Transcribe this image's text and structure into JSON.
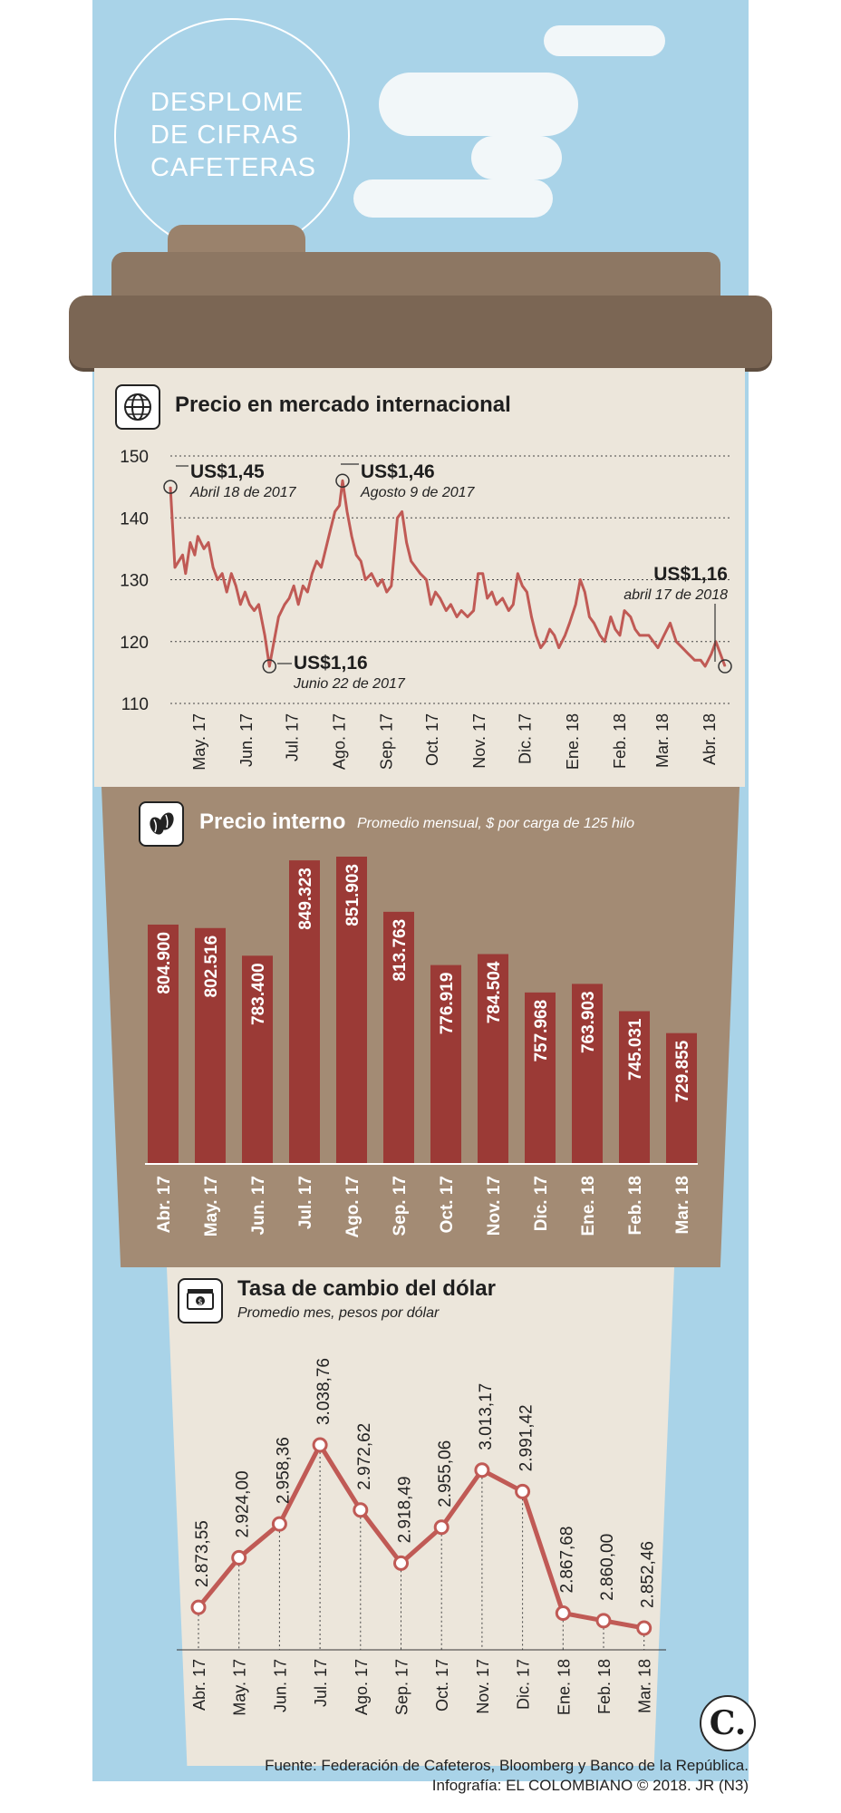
{
  "header": {
    "title_lines": [
      "DESPLOME",
      "DE CIFRAS",
      "CAFETERAS"
    ]
  },
  "chart_data": [
    {
      "type": "line",
      "title": "Precio en mercado internacional",
      "ylim": [
        110,
        150
      ],
      "y_ticks": [
        150,
        140,
        130,
        120,
        110
      ],
      "x_tick_labels": [
        "May. 17",
        "Jun. 17",
        "Jul. 17",
        "Ago. 17",
        "Sep. 17",
        "Oct. 17",
        "Nov. 17",
        "Dic. 17",
        "Ene. 18",
        "Feb. 18",
        "Mar. 18",
        "Abr. 18"
      ],
      "x_range": [
        "2017-04-18",
        "2018-04-17"
      ],
      "color": "#c05a55",
      "grid": "dotted horizontal",
      "points": [
        [
          "2017-04-18",
          145
        ],
        [
          "2017-04-21",
          132
        ],
        [
          "2017-04-26",
          134
        ],
        [
          "2017-04-28",
          131
        ],
        [
          "2017-05-01",
          136
        ],
        [
          "2017-05-04",
          134
        ],
        [
          "2017-05-06",
          137
        ],
        [
          "2017-05-10",
          135
        ],
        [
          "2017-05-13",
          136
        ],
        [
          "2017-05-16",
          132
        ],
        [
          "2017-05-19",
          130
        ],
        [
          "2017-05-22",
          131
        ],
        [
          "2017-05-25",
          128
        ],
        [
          "2017-05-28",
          131
        ],
        [
          "2017-05-31",
          129
        ],
        [
          "2017-06-03",
          126
        ],
        [
          "2017-06-06",
          128
        ],
        [
          "2017-06-09",
          126
        ],
        [
          "2017-06-12",
          125
        ],
        [
          "2017-06-15",
          126
        ],
        [
          "2017-06-19",
          121
        ],
        [
          "2017-06-22",
          116
        ],
        [
          "2017-06-25",
          120
        ],
        [
          "2017-06-28",
          124
        ],
        [
          "2017-07-02",
          126
        ],
        [
          "2017-07-05",
          127
        ],
        [
          "2017-07-08",
          129
        ],
        [
          "2017-07-11",
          126
        ],
        [
          "2017-07-14",
          129
        ],
        [
          "2017-07-17",
          128
        ],
        [
          "2017-07-20",
          131
        ],
        [
          "2017-07-23",
          133
        ],
        [
          "2017-07-26",
          132
        ],
        [
          "2017-07-29",
          135
        ],
        [
          "2017-08-01",
          138
        ],
        [
          "2017-08-04",
          141
        ],
        [
          "2017-08-07",
          142
        ],
        [
          "2017-08-09",
          146
        ],
        [
          "2017-08-12",
          141
        ],
        [
          "2017-08-15",
          137
        ],
        [
          "2017-08-18",
          134
        ],
        [
          "2017-08-21",
          133
        ],
        [
          "2017-08-24",
          130
        ],
        [
          "2017-08-28",
          131
        ],
        [
          "2017-09-01",
          129
        ],
        [
          "2017-09-04",
          130
        ],
        [
          "2017-09-07",
          128
        ],
        [
          "2017-09-10",
          129
        ],
        [
          "2017-09-14",
          140
        ],
        [
          "2017-09-17",
          141
        ],
        [
          "2017-09-20",
          136
        ],
        [
          "2017-09-23",
          133
        ],
        [
          "2017-09-26",
          132
        ],
        [
          "2017-09-29",
          131
        ],
        [
          "2017-10-03",
          130
        ],
        [
          "2017-10-06",
          126
        ],
        [
          "2017-10-09",
          128
        ],
        [
          "2017-10-12",
          127
        ],
        [
          "2017-10-16",
          125
        ],
        [
          "2017-10-19",
          126
        ],
        [
          "2017-10-23",
          124
        ],
        [
          "2017-10-26",
          125
        ],
        [
          "2017-10-30",
          124
        ],
        [
          "2017-11-03",
          125
        ],
        [
          "2017-11-06",
          131
        ],
        [
          "2017-11-09",
          131
        ],
        [
          "2017-11-12",
          127
        ],
        [
          "2017-11-15",
          128
        ],
        [
          "2017-11-18",
          126
        ],
        [
          "2017-11-22",
          127
        ],
        [
          "2017-11-26",
          125
        ],
        [
          "2017-11-29",
          126
        ],
        [
          "2017-12-02",
          131
        ],
        [
          "2017-12-05",
          129
        ],
        [
          "2017-12-08",
          128
        ],
        [
          "2017-12-11",
          124
        ],
        [
          "2017-12-14",
          121
        ],
        [
          "2017-12-17",
          119
        ],
        [
          "2017-12-20",
          120
        ],
        [
          "2017-12-23",
          122
        ],
        [
          "2017-12-26",
          121
        ],
        [
          "2017-12-29",
          119
        ],
        [
          "2018-01-02",
          121
        ],
        [
          "2018-01-05",
          123
        ],
        [
          "2018-01-09",
          126
        ],
        [
          "2018-01-12",
          130
        ],
        [
          "2018-01-15",
          128
        ],
        [
          "2018-01-18",
          124
        ],
        [
          "2018-01-21",
          123
        ],
        [
          "2018-01-25",
          121
        ],
        [
          "2018-01-28",
          120
        ],
        [
          "2018-02-01",
          124
        ],
        [
          "2018-02-04",
          122
        ],
        [
          "2018-02-07",
          121
        ],
        [
          "2018-02-10",
          125
        ],
        [
          "2018-02-14",
          124
        ],
        [
          "2018-02-17",
          122
        ],
        [
          "2018-02-20",
          121
        ],
        [
          "2018-02-23",
          121
        ],
        [
          "2018-02-26",
          121
        ],
        [
          "2018-03-01",
          120
        ],
        [
          "2018-03-04",
          119
        ],
        [
          "2018-03-08",
          121
        ],
        [
          "2018-03-12",
          123
        ],
        [
          "2018-03-16",
          120
        ],
        [
          "2018-03-20",
          119
        ],
        [
          "2018-03-24",
          118
        ],
        [
          "2018-03-28",
          117
        ],
        [
          "2018-04-01",
          117
        ],
        [
          "2018-04-04",
          116
        ],
        [
          "2018-04-08",
          118
        ],
        [
          "2018-04-11",
          120
        ],
        [
          "2018-04-17",
          116
        ]
      ],
      "annotations": [
        {
          "value": "US$1,45",
          "date": "Abril 18 de 2017"
        },
        {
          "value": "US$1,46",
          "date": "Agosto 9 de 2017"
        },
        {
          "value": "US$1,16",
          "date": "Junio 22 de 2017"
        },
        {
          "value": "US$1,16",
          "date": "abril 17 de 2018"
        }
      ]
    },
    {
      "type": "bar",
      "title": "Precio interno",
      "subtitle": "Promedio mensual, $ por carga de 125 hilo",
      "categories": [
        "Abr. 17",
        "May. 17",
        "Jun. 17",
        "Jul. 17",
        "Ago. 17",
        "Sep. 17",
        "Oct. 17",
        "Nov. 17",
        "Dic. 17",
        "Ene. 18",
        "Feb. 18",
        "Mar. 18"
      ],
      "values": [
        804900,
        802516,
        783400,
        849323,
        851903,
        813763,
        776919,
        784504,
        757968,
        763903,
        745031,
        729855
      ],
      "value_labels": [
        "804.900",
        "802.516",
        "783.400",
        "849.323",
        "851.903",
        "813.763",
        "776.919",
        "784.504",
        "757.968",
        "763.903",
        "745.031",
        "729.855"
      ],
      "color": "#9b3a36"
    },
    {
      "type": "line",
      "title": "Tasa de cambio del dólar",
      "subtitle": "Promedio mes, pesos por dólar",
      "categories": [
        "Abr. 17",
        "May. 17",
        "Jun. 17",
        "Jul. 17",
        "Ago. 17",
        "Sep. 17",
        "Oct. 17",
        "Nov. 17",
        "Dic. 17",
        "Ene. 18",
        "Feb. 18",
        "Mar. 18"
      ],
      "values": [
        2873.55,
        2924.0,
        2958.36,
        3038.76,
        2972.62,
        2918.49,
        2955.06,
        3013.17,
        2991.42,
        2867.68,
        2860.0,
        2852.46
      ],
      "value_labels": [
        "2.873,55",
        "2.924,00",
        "2.958,36",
        "3.038,76",
        "2.972,62",
        "2.918,49",
        "2.955,06",
        "3.013,17",
        "2.991,42",
        "2.867,68",
        "2.860,00",
        "2.852,46"
      ],
      "color": "#c05a55"
    }
  ],
  "footer": {
    "source": "Fuente: Federación de Cafeteros, Bloomberg y Banco de la República.",
    "credit": "Infografía: EL COLOMBIANO © 2018. JR (N3)",
    "logo": "C."
  }
}
